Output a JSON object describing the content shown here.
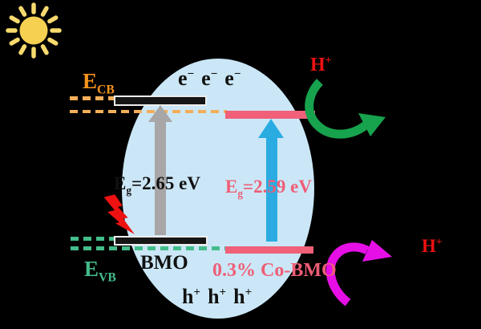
{
  "figure": {
    "description": "Photocatalytic band-structure mechanism scheme for BMO and 0.3% Co-BMO"
  },
  "labels": {
    "e_cb": {
      "base": "E",
      "sub": "CB"
    },
    "e_vb": {
      "base": "E",
      "sub": "VB"
    },
    "eg_bmo": {
      "base": "E",
      "sub": "g",
      "rest": "=2.65 eV"
    },
    "eg_cobmo": {
      "base": "E",
      "sub": "g",
      "rest": "=2.59 eV"
    },
    "bmo": "BMO",
    "co_bmo": "0.3% Co-BMO",
    "h_plus_top": {
      "base": "H",
      "sup": "+"
    },
    "h_plus_bottom": {
      "base": "H",
      "sup": "+"
    },
    "electrons": [
      {
        "base": "e",
        "sup": "−"
      },
      {
        "base": "e",
        "sup": "−"
      },
      {
        "base": "e",
        "sup": "−"
      }
    ],
    "holes": [
      {
        "base": "h",
        "sup": "+"
      },
      {
        "base": "h",
        "sup": "+"
      },
      {
        "base": "h",
        "sup": "+"
      }
    ]
  },
  "icons": {
    "sun": "sun-icon",
    "lightning": "light-excitation-bolt-icon",
    "gray_up_arrow": "bmo-excitation-arrow",
    "blue_up_arrow": "cobmo-excitation-arrow",
    "green_curved_arrow": "h2-evolution-arrow-cobmo",
    "magenta_curved_arrow": "h2-evolution-arrow-vb"
  },
  "colors": {
    "bg": "#000000",
    "particle": "#cbe7f7",
    "bar-black": "#161616",
    "bar-outline": "#ededed",
    "pink-bar": "#f06078",
    "orange-dash": "#f3ae59",
    "green-dash": "#44bd8b",
    "orange-label": "#f7941d",
    "green-label": "#44bd8b",
    "pink": "#ef5e76",
    "red": "#ee1111",
    "text-black": "#111111",
    "gray-arrow": "#a8a6a7",
    "blue-arrow": "#2aace2",
    "green-arrow": "#17a24d",
    "magenta": "#e60fe6",
    "sun-body": "#f6d051",
    "sun-ray": "#f8da6e"
  }
}
